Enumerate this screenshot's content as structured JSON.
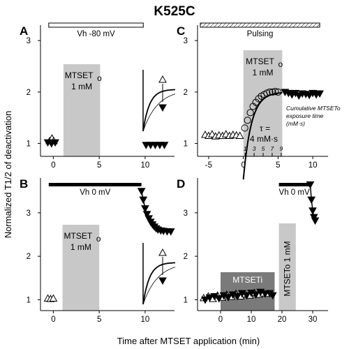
{
  "figure": {
    "title": "K525C",
    "ylabel": "Normalized T1/2 of deactivation",
    "xlabel": "Time after MTSET application (min)"
  },
  "chart_data": [
    {
      "type": "scatter",
      "panel": "A",
      "bar_label": "Vh -80 mV",
      "bar_range": [
        -0.5,
        9.8
      ],
      "shade_label": [
        "MTSETo",
        "1 mM"
      ],
      "shade_range": [
        1.1,
        5.1
      ],
      "xlim": [
        -1.4,
        13.2
      ],
      "ylim": [
        0.75,
        3.3
      ],
      "xticks": [
        "0",
        "5",
        "10"
      ],
      "yticks": [
        "1",
        "2",
        "3"
      ],
      "series": [
        {
          "marker": "triangle-up",
          "x": [
            -0.4,
            -0.15,
            0.05
          ],
          "y": [
            1.05,
            1.1,
            1.05
          ]
        },
        {
          "marker": "triangle-down",
          "x": [
            -0.6,
            -0.2,
            0.2
          ],
          "y": [
            1.02,
            1.0,
            1.02
          ]
        },
        {
          "marker": "triangle-down",
          "x": [
            10.1,
            10.6,
            11.1,
            11.6,
            12.1
          ],
          "y": [
            0.97,
            0.97,
            0.97,
            0.97,
            0.97
          ]
        }
      ]
    },
    {
      "type": "scatter",
      "panel": "B",
      "bar_label": "Vh 0 mV",
      "bar_range": [
        -0.5,
        9.6
      ],
      "shade_label": [
        "MTSETo",
        "1 mM"
      ],
      "shade_range": [
        1.0,
        5.0
      ],
      "xlim": [
        -1.4,
        13.2
      ],
      "ylim": [
        0.75,
        3.8
      ],
      "xticks": [
        "0",
        "5",
        "10"
      ],
      "yticks": [
        "1",
        "2",
        "3"
      ],
      "series": [
        {
          "marker": "triangle-up",
          "x": [
            -0.6,
            -0.3,
            0.0
          ],
          "y": [
            1.03,
            1.02,
            1.03
          ]
        },
        {
          "marker": "triangle-down",
          "x": [
            9.6,
            9.8,
            10.0,
            10.2,
            10.4,
            10.6,
            10.8,
            11.0,
            11.2,
            11.4,
            11.7,
            12.0,
            12.4,
            12.8
          ],
          "y": [
            3.5,
            3.3,
            3.1,
            2.97,
            2.87,
            2.79,
            2.73,
            2.68,
            2.64,
            2.61,
            2.59,
            2.58,
            2.57,
            2.57
          ]
        }
      ]
    },
    {
      "type": "scatter",
      "panel": "C",
      "bar_label": "Pulsing",
      "bar_range": [
        -6.2,
        11.0
      ],
      "shade_label": [
        "MTSETo",
        "1 mM"
      ],
      "shade_range": [
        0.0,
        5.6
      ],
      "xlim": [
        -6.6,
        12.2
      ],
      "ylim": [
        0.75,
        3.3
      ],
      "xticks": [
        "-5",
        "0",
        "5",
        "10"
      ],
      "yticks": [
        "1",
        "2",
        "3"
      ],
      "fit_label": "τ =",
      "fit_value": "4 mM·s",
      "annotation": [
        "Cumulative MTSETo",
        "exposure time",
        "(mM·s)"
      ],
      "exposure_ticks": [
        "1",
        "3",
        "5",
        "7",
        "9"
      ],
      "series": [
        {
          "marker": "triangle-up",
          "x": [
            -5.5,
            -5.0,
            -4.5,
            -4.0,
            -3.5,
            -3.0,
            -2.5,
            -2.0,
            -1.5,
            -1.0,
            -0.5
          ],
          "y": [
            1.17,
            1.15,
            1.18,
            1.14,
            1.16,
            1.15,
            1.18,
            1.15,
            1.17,
            1.16,
            1.15
          ]
        },
        {
          "marker": "circle",
          "x": [
            0.2,
            0.6,
            1.0,
            1.4,
            1.8,
            2.2,
            2.6,
            3.0,
            3.4,
            3.8,
            4.2,
            4.6,
            5.0
          ],
          "y": [
            1.3,
            1.45,
            1.6,
            1.72,
            1.8,
            1.87,
            1.92,
            1.95,
            1.98,
            2.0,
            2.0,
            2.01,
            2.0
          ]
        },
        {
          "marker": "triangle-down",
          "x": [
            6.0,
            6.5,
            7.0,
            7.5,
            8.0,
            8.5,
            9.0,
            9.5,
            10.0,
            10.5,
            11.0
          ],
          "y": [
            2.0,
            1.98,
            1.95,
            1.98,
            1.93,
            1.97,
            1.96,
            1.94,
            1.98,
            1.95,
            1.97
          ]
        }
      ]
    },
    {
      "type": "scatter",
      "panel": "D",
      "bar_label": "Vh 0 mV",
      "bar_range": [
        19.0,
        29.0
      ],
      "shade_inner_label": "MTSETi",
      "shade_inner_range": [
        0.0,
        17.6
      ],
      "shade_outer_label": "MTSETo 1 mM",
      "shade_outer_range": [
        19.0,
        24.5
      ],
      "xlim": [
        -7.5,
        35.0
      ],
      "ylim": [
        0.75,
        3.8
      ],
      "xticks": [
        "0",
        "10",
        "20",
        "30"
      ],
      "yticks": [
        "1",
        "2",
        "3"
      ],
      "series": [
        {
          "marker": "triangle-up",
          "x": [
            -5.5,
            -4.0,
            -2.5,
            -1.0,
            0.5,
            2.0,
            3.5,
            5.0,
            6.5,
            8.0,
            9.5,
            11.0,
            12.5,
            14.0,
            15.5
          ],
          "y": [
            1.04,
            1.08,
            1.02,
            1.1,
            1.05,
            1.12,
            1.07,
            1.14,
            1.08,
            1.13,
            1.1,
            1.16,
            1.12,
            1.15,
            1.14
          ]
        },
        {
          "marker": "triangle-down",
          "x": [
            -5.0,
            -3.5,
            -2.0,
            -0.5,
            1.0,
            2.5,
            4.0,
            5.5,
            7.0,
            8.5,
            10.0,
            11.5,
            13.0,
            14.5,
            16.0,
            17.0
          ],
          "y": [
            1.0,
            1.05,
            1.08,
            1.03,
            1.1,
            1.06,
            1.12,
            1.08,
            1.15,
            1.1,
            1.16,
            1.12,
            1.18,
            1.14,
            1.15,
            1.1
          ]
        },
        {
          "marker": "triangle-down",
          "x": [
            29.2,
            29.6,
            30.0,
            30.4,
            30.8
          ],
          "y": [
            3.65,
            3.3,
            3.05,
            2.9,
            2.82
          ]
        }
      ]
    }
  ]
}
